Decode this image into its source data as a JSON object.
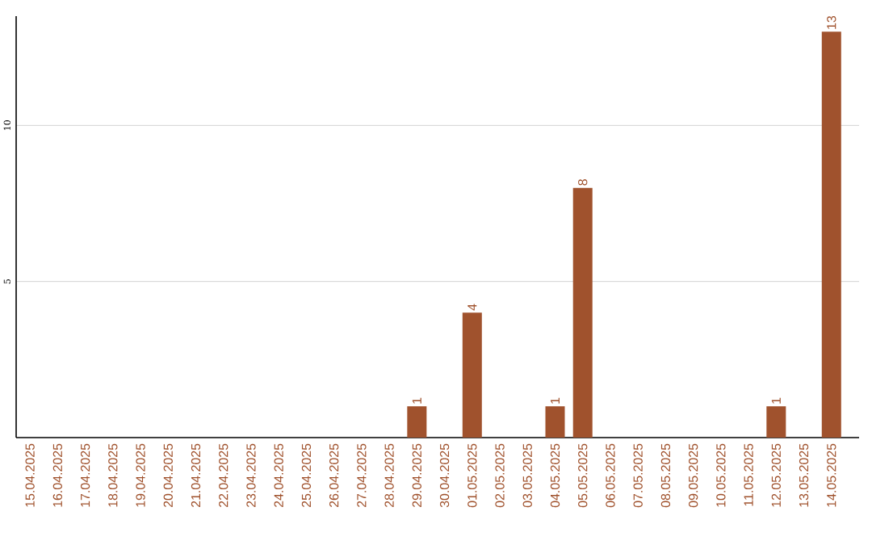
{
  "chart_data": {
    "type": "bar",
    "categories": [
      "15.04.2025",
      "16.04.2025",
      "17.04.2025",
      "18.04.2025",
      "19.04.2025",
      "20.04.2025",
      "21.04.2025",
      "22.04.2025",
      "23.04.2025",
      "24.04.2025",
      "25.04.2025",
      "26.04.2025",
      "27.04.2025",
      "28.04.2025",
      "29.04.2025",
      "30.04.2025",
      "01.05.2025",
      "02.05.2025",
      "03.05.2025",
      "04.05.2025",
      "05.05.2025",
      "06.05.2025",
      "07.05.2025",
      "08.05.2025",
      "09.05.2025",
      "10.05.2025",
      "11.05.2025",
      "12.05.2025",
      "13.05.2025",
      "14.05.2025"
    ],
    "values": [
      0,
      0,
      0,
      0,
      0,
      0,
      0,
      0,
      0,
      0,
      0,
      0,
      0,
      0,
      1,
      0,
      4,
      0,
      0,
      1,
      8,
      0,
      0,
      0,
      0,
      0,
      0,
      1,
      0,
      13
    ],
    "value_labels": [
      null,
      null,
      null,
      null,
      null,
      null,
      null,
      null,
      null,
      null,
      null,
      null,
      null,
      null,
      "1",
      null,
      "4",
      null,
      null,
      "1",
      "8",
      null,
      null,
      null,
      null,
      null,
      null,
      "1",
      null,
      "13"
    ],
    "color": "#a0522d",
    "ylim": [
      0,
      13.5
    ],
    "yticks": [
      5,
      10
    ],
    "grid": "y"
  }
}
